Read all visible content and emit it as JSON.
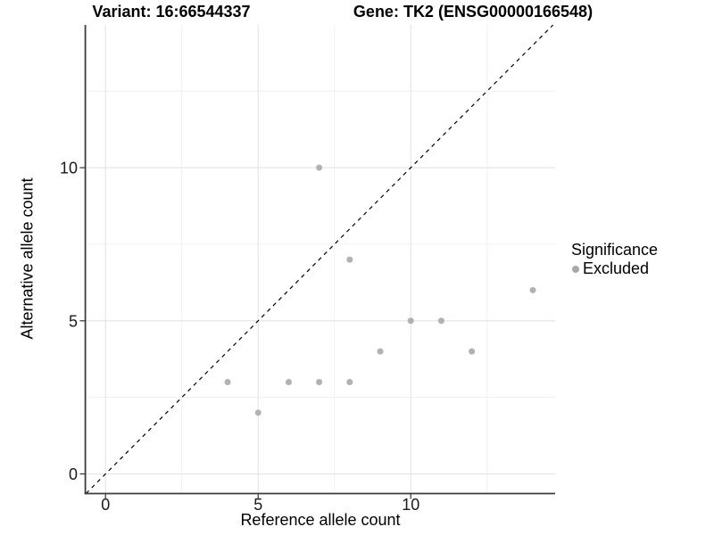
{
  "chart_data": {
    "type": "scatter",
    "title_left": "Variant: 16:66544337",
    "title_right": "Gene: TK2 (ENSG00000166548)",
    "xlabel": "Reference allele count",
    "ylabel": "Alternative allele count",
    "xlim": [
      -0.65,
      14.73
    ],
    "ylim": [
      -0.64,
      14.66
    ],
    "x_ticks": [
      0,
      5,
      10
    ],
    "y_ticks": [
      0,
      5,
      10
    ],
    "x_tick_labels": [
      "0",
      "5",
      "10"
    ],
    "y_tick_labels": [
      "0",
      "5",
      "10"
    ],
    "x_minor_breaks": [
      2.5,
      7.5,
      12.5
    ],
    "y_minor_breaks": [
      2.5,
      7.5,
      12.5
    ],
    "grid": true,
    "series": [
      {
        "name": "Excluded",
        "points": [
          [
            4,
            3
          ],
          [
            5,
            2
          ],
          [
            6,
            3
          ],
          [
            7,
            3
          ],
          [
            8,
            3
          ],
          [
            9,
            4
          ],
          [
            10,
            5
          ],
          [
            11,
            5
          ],
          [
            12,
            4
          ],
          [
            14,
            6
          ],
          [
            8,
            7
          ],
          [
            7,
            10
          ]
        ]
      }
    ],
    "identity_line": {
      "slope": 1,
      "intercept": 0,
      "linetype": "dashed",
      "color": "#000000"
    },
    "legend": {
      "title": "Significance",
      "position": "right",
      "items": [
        {
          "label": "Excluded",
          "color": "#a9a9a9"
        }
      ]
    },
    "colors": {
      "point": "#b1b1b1",
      "grid_major": "#e4e4e4",
      "grid_minor": "#f0f0f0",
      "axis_line": "#3c3c3c",
      "tick": "#333333",
      "tick_label": "#1a1a1a"
    }
  }
}
